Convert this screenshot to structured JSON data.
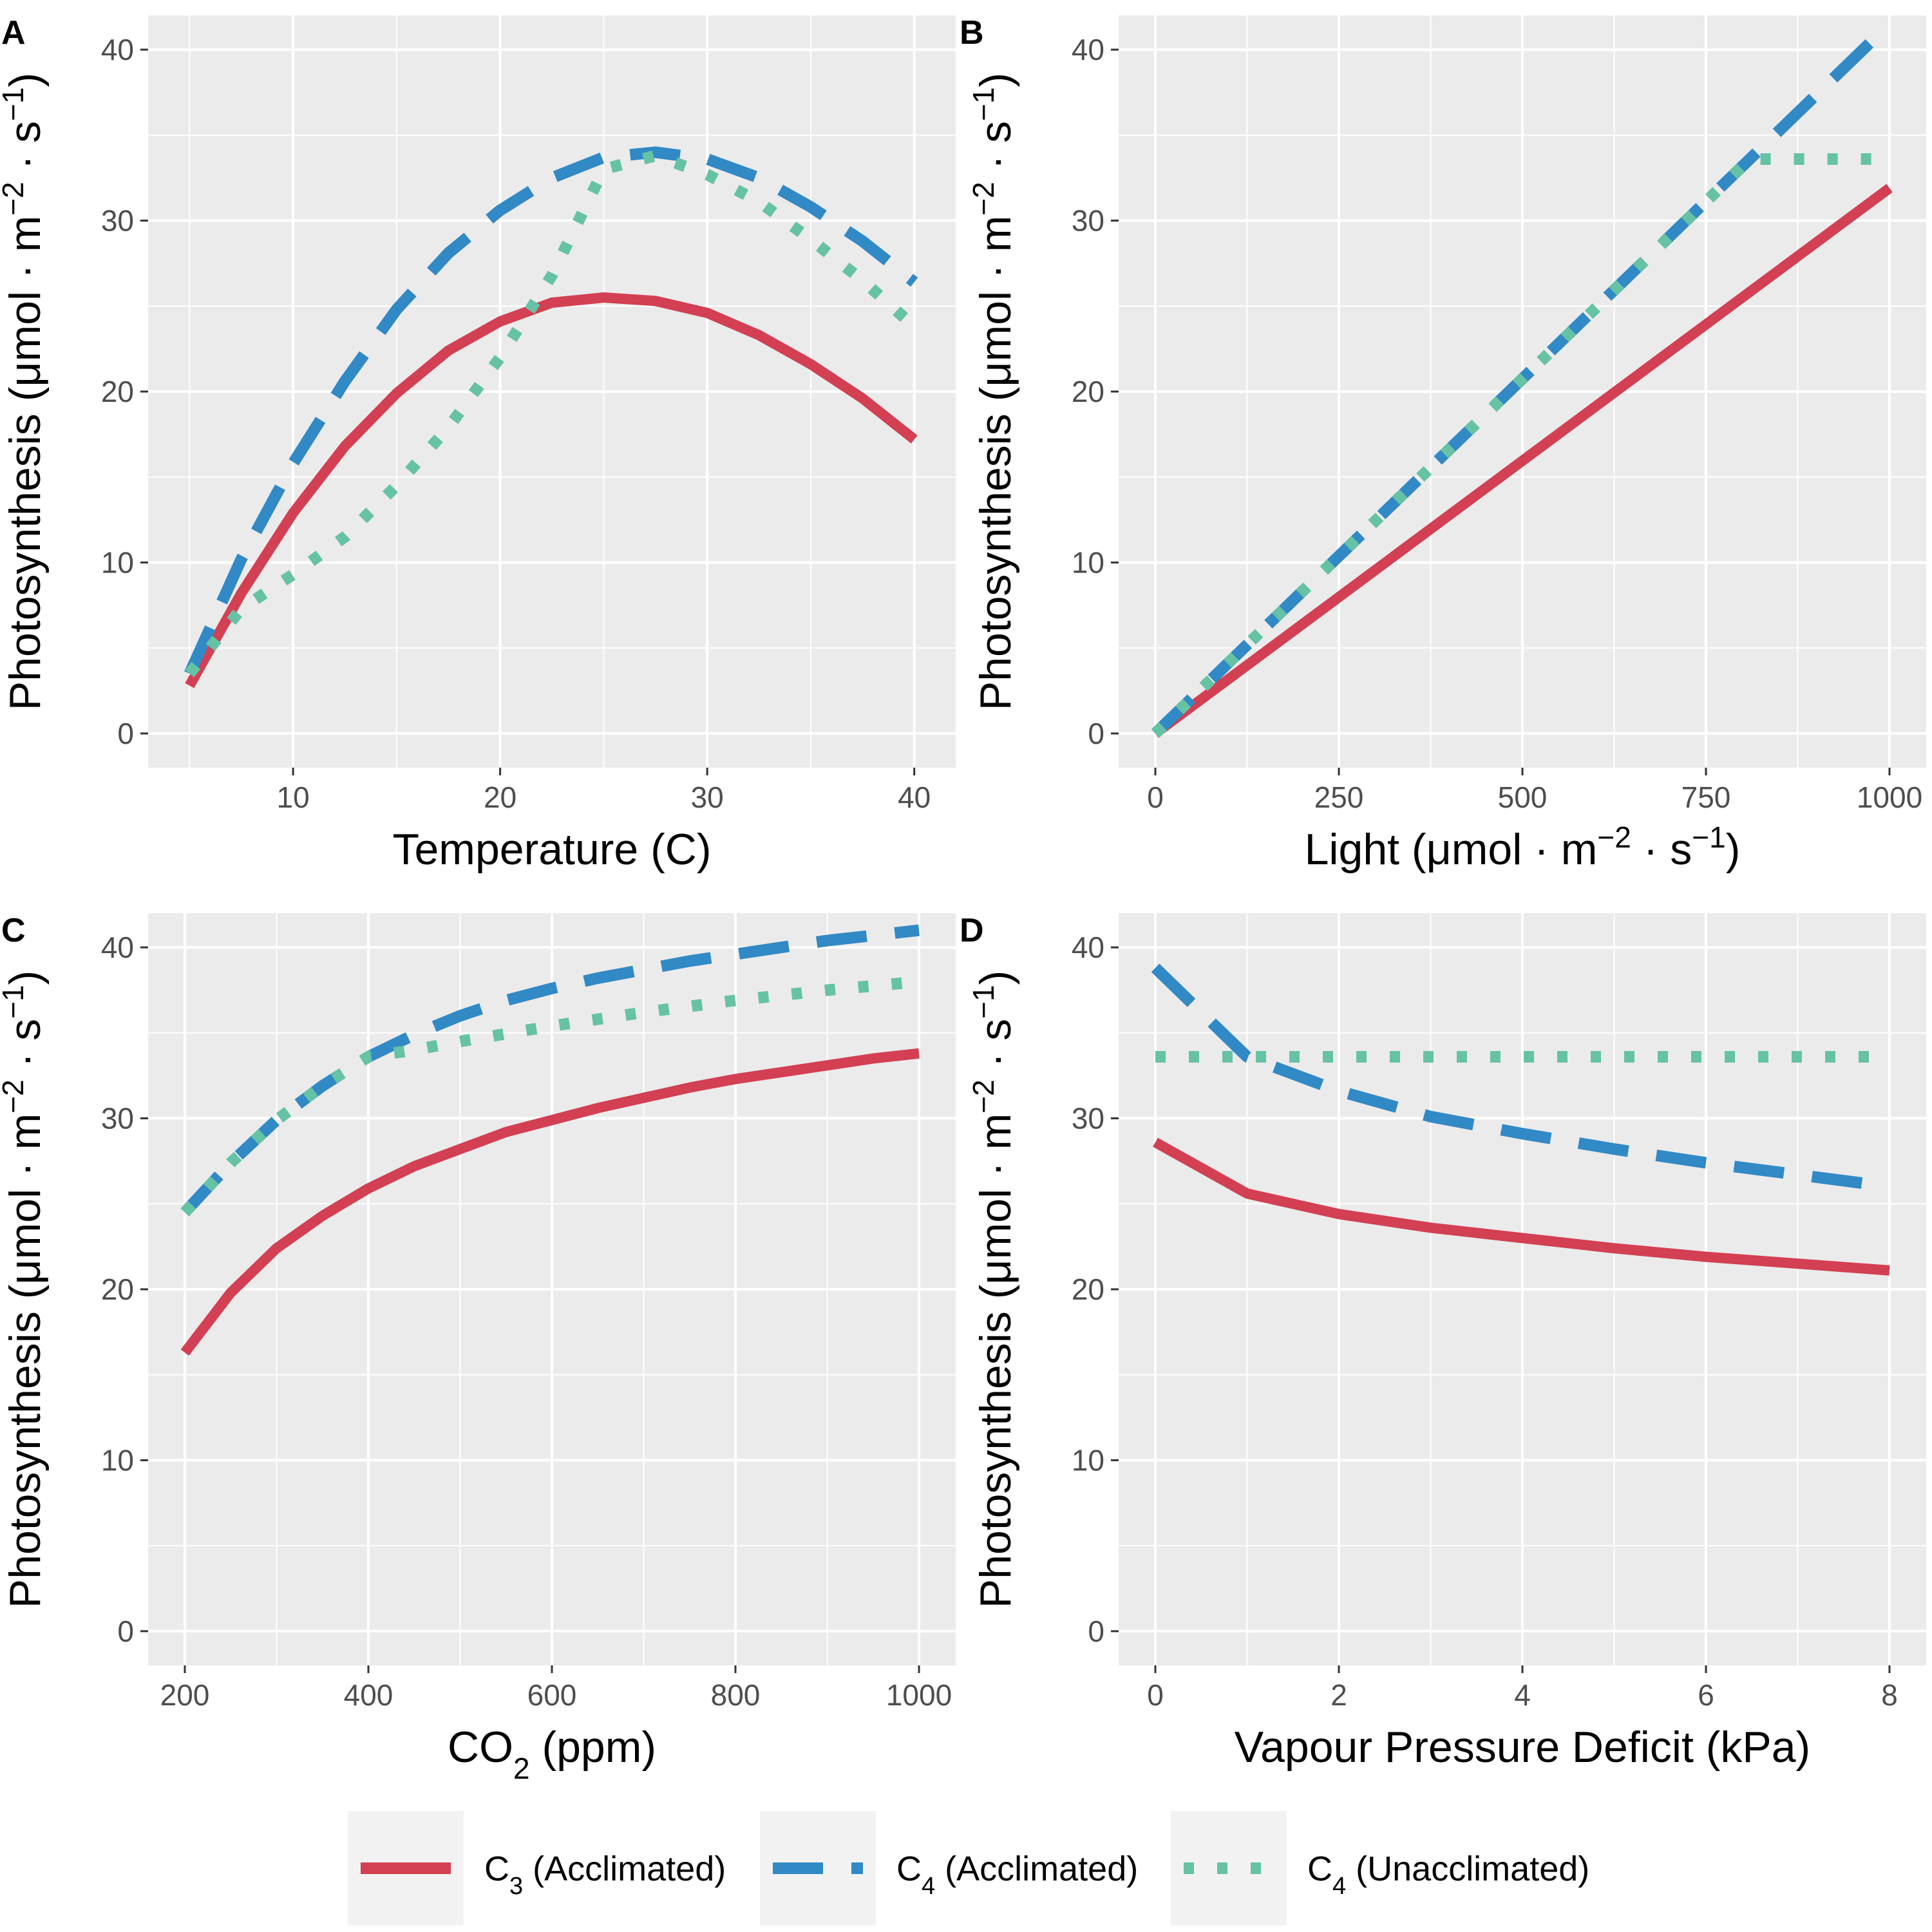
{
  "colors": {
    "panel_bg": "#EBEBEB",
    "grid": "#FFFFFF",
    "c3_acclimated": "#D33F53",
    "c4_acclimated": "#3189C5",
    "c4_unacclimated": "#66C2A5"
  },
  "legend": {
    "items": [
      {
        "key": "c3",
        "prefix": "C",
        "sub": "3",
        "suffix": " (Acclimated)",
        "color": "#D33F53",
        "style": "solid"
      },
      {
        "key": "c4a",
        "prefix": "C",
        "sub": "4",
        "suffix": " (Acclimated)",
        "color": "#3189C5",
        "style": "dashed"
      },
      {
        "key": "c4u",
        "prefix": "C",
        "sub": "4",
        "suffix": " (Unacclimated)",
        "color": "#66C2A5",
        "style": "dotted"
      }
    ],
    "placement": "bottom"
  },
  "chart_data": [
    {
      "panel": "A",
      "type": "line",
      "xlabel": "Temperature (C)",
      "ylabel": "Photosynthesis (μmol · m−2 · s−1)",
      "xlim": [
        3,
        42
      ],
      "ylim": [
        -2,
        42
      ],
      "xticks": [
        10,
        20,
        30,
        40
      ],
      "yticks": [
        0,
        10,
        20,
        30,
        40
      ],
      "grid": true,
      "series": [
        {
          "name": "C3 (Acclimated)",
          "style": "solid",
          "color": "#D33F53",
          "x": [
            5,
            7.5,
            10,
            12.5,
            15,
            17.5,
            20,
            22.5,
            25,
            27.5,
            30,
            32.5,
            35,
            37.5,
            40
          ],
          "y": [
            2.8,
            8.2,
            12.9,
            16.8,
            19.9,
            22.4,
            24.1,
            25.2,
            25.5,
            25.3,
            24.6,
            23.3,
            21.6,
            19.6,
            17.2
          ]
        },
        {
          "name": "C4 (Acclimated)",
          "style": "dashed",
          "color": "#3189C5",
          "x": [
            5,
            7.5,
            10,
            12.5,
            15,
            17.5,
            20,
            22.5,
            25,
            27.5,
            30,
            32.5,
            35,
            37.5,
            40
          ],
          "y": [
            3.5,
            10.2,
            15.8,
            20.6,
            24.8,
            28.1,
            30.6,
            32.5,
            33.7,
            34.0,
            33.6,
            32.5,
            30.8,
            28.8,
            26.4
          ]
        },
        {
          "name": "C4 (Unacclimated)",
          "style": "dotted",
          "color": "#66C2A5",
          "x": [
            5,
            7.5,
            10,
            12.5,
            15,
            17.5,
            20,
            22.5,
            25,
            27.5,
            30,
            32.5,
            35,
            37.5,
            40
          ],
          "y": [
            3.5,
            7.3,
            9.3,
            11.5,
            14.5,
            17.9,
            22.0,
            26.8,
            33.0,
            33.8,
            32.7,
            31.1,
            28.9,
            26.5,
            23.8
          ]
        }
      ]
    },
    {
      "panel": "B",
      "type": "line",
      "xlabel": "Light (μmol · m−2 · s−1)",
      "ylabel": "Photosynthesis (μmol · m−2 · s−1)",
      "xlim": [
        -50,
        1050
      ],
      "ylim": [
        -2,
        42
      ],
      "xticks": [
        0,
        250,
        500,
        750,
        1000
      ],
      "yticks": [
        0,
        10,
        20,
        30,
        40
      ],
      "grid": true,
      "series": [
        {
          "name": "C3 (Acclimated)",
          "style": "solid",
          "color": "#D33F53",
          "x": [
            0,
            1000
          ],
          "y": [
            0,
            31.9
          ]
        },
        {
          "name": "C4 (Acclimated)",
          "style": "dashed",
          "color": "#3189C5",
          "x": [
            0,
            1000
          ],
          "y": [
            0,
            41.5
          ]
        },
        {
          "name": "C4 (Unacclimated)",
          "style": "dotted",
          "color": "#66C2A5",
          "x": [
            0,
            810,
            1000
          ],
          "y": [
            0,
            33.6,
            33.6
          ]
        }
      ]
    },
    {
      "panel": "C",
      "type": "line",
      "xlabel_prefix": "CO",
      "xlabel_sub": "2",
      "xlabel_suffix": " (ppm)",
      "ylabel": "Photosynthesis (μmol · m−2 · s−1)",
      "xlim": [
        160,
        1040
      ],
      "ylim": [
        -2,
        42
      ],
      "xticks": [
        200,
        400,
        600,
        800,
        1000
      ],
      "yticks": [
        0,
        10,
        20,
        30,
        40
      ],
      "grid": true,
      "series": [
        {
          "name": "C3 (Acclimated)",
          "style": "solid",
          "color": "#D33F53",
          "x": [
            200,
            250,
            300,
            350,
            400,
            450,
            500,
            550,
            600,
            650,
            700,
            750,
            800,
            850,
            900,
            950,
            1000
          ],
          "y": [
            16.3,
            19.8,
            22.4,
            24.3,
            25.9,
            27.2,
            28.2,
            29.2,
            29.9,
            30.6,
            31.2,
            31.8,
            32.3,
            32.7,
            33.1,
            33.5,
            33.8
          ]
        },
        {
          "name": "C4 (Acclimated)",
          "style": "dashed",
          "color": "#3189C5",
          "x": [
            200,
            250,
            300,
            350,
            400,
            450,
            500,
            550,
            600,
            650,
            700,
            750,
            800,
            850,
            900,
            950,
            1000
          ],
          "y": [
            24.5,
            27.4,
            29.9,
            31.9,
            33.6,
            34.9,
            36.0,
            36.9,
            37.6,
            38.2,
            38.7,
            39.2,
            39.6,
            40.0,
            40.4,
            40.7,
            41.0
          ]
        },
        {
          "name": "C4 (Unacclimated)",
          "style": "dotted",
          "color": "#66C2A5",
          "x": [
            200,
            250,
            300,
            350,
            400,
            450,
            500,
            600,
            700,
            800,
            900,
            1000
          ],
          "y": [
            24.5,
            27.4,
            29.9,
            31.9,
            33.6,
            34.0,
            34.5,
            35.4,
            36.2,
            36.9,
            37.5,
            38.0
          ]
        }
      ]
    },
    {
      "panel": "D",
      "type": "line",
      "xlabel": "Vapour Pressure Deficit (kPa)",
      "ylabel": "Photosynthesis (μmol · m−2 · s−1)",
      "xlim": [
        -0.4,
        8.4
      ],
      "ylim": [
        -2,
        42
      ],
      "xticks": [
        0,
        2,
        4,
        6,
        8
      ],
      "yticks": [
        0,
        10,
        20,
        30,
        40
      ],
      "grid": true,
      "series": [
        {
          "name": "C3 (Acclimated)",
          "style": "solid",
          "color": "#D33F53",
          "x": [
            0,
            1,
            2,
            3,
            4,
            5,
            6,
            7,
            8
          ],
          "y": [
            28.6,
            25.6,
            24.4,
            23.6,
            23.0,
            22.4,
            21.9,
            21.5,
            21.1
          ]
        },
        {
          "name": "C4 (Acclimated)",
          "style": "dashed",
          "color": "#3189C5",
          "x": [
            0,
            1,
            2,
            3,
            4,
            5,
            6,
            7,
            8
          ],
          "y": [
            38.8,
            33.6,
            31.6,
            30.1,
            29.1,
            28.2,
            27.4,
            26.7,
            26.0
          ]
        },
        {
          "name": "C4 (Unacclimated)",
          "style": "dotted",
          "color": "#66C2A5",
          "x": [
            0,
            8
          ],
          "y": [
            33.6,
            33.6
          ]
        }
      ]
    }
  ]
}
